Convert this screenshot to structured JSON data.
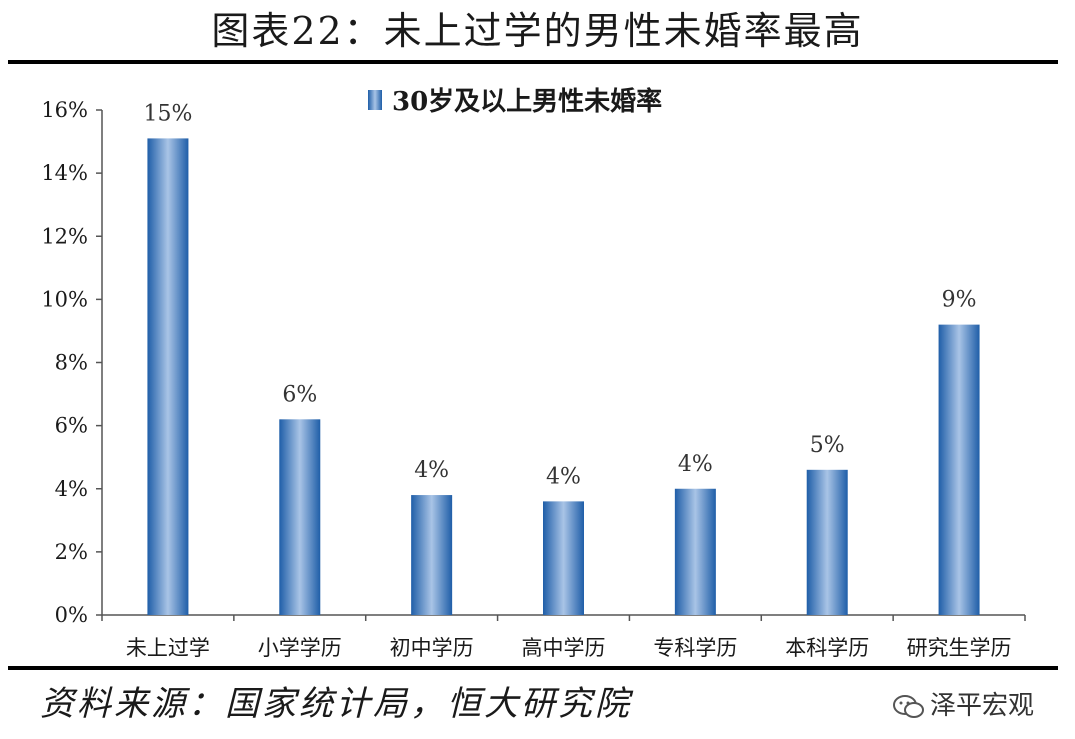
{
  "header": {
    "title": "图表22：未上过学的男性未婚率最高"
  },
  "footer": {
    "source": "资料来源：国家统计局，恒大研究院",
    "watermark": "泽平宏观"
  },
  "chart_data": {
    "type": "bar",
    "categories": [
      "未上过学",
      "小学学历",
      "初中学历",
      "高中学历",
      "专科学历",
      "本科学历",
      "研究生学历"
    ],
    "series": [
      {
        "name": "30岁及以上男性未婚率",
        "values": [
          15.1,
          6.2,
          3.8,
          3.6,
          4.0,
          4.6,
          9.2
        ],
        "labels": [
          "15%",
          "6%",
          "4%",
          "4%",
          "4%",
          "5%",
          "9%"
        ]
      }
    ],
    "y_ticks": [
      "0%",
      "2%",
      "4%",
      "6%",
      "8%",
      "10%",
      "12%",
      "14%",
      "16%"
    ],
    "ylim": [
      0,
      16
    ],
    "y_unit": "%",
    "legend_position": "top-center",
    "grid": false,
    "colors": {
      "bar_dark": "#1f5ea8",
      "bar_light": "#a9c4e6"
    }
  }
}
